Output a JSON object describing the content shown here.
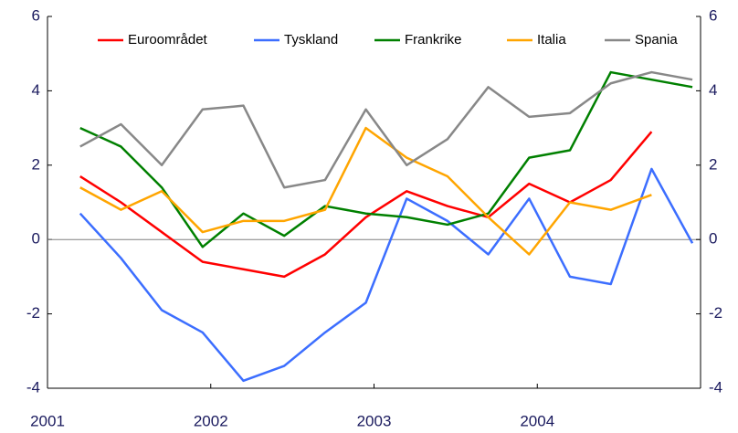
{
  "chart_data": {
    "type": "line",
    "x": [
      2001.2,
      2001.45,
      2001.7,
      2001.95,
      2002.2,
      2002.45,
      2002.7,
      2002.95,
      2003.2,
      2003.45,
      2003.7,
      2003.95,
      2004.2,
      2004.45,
      2004.7,
      2004.95
    ],
    "xlim": [
      2001,
      2005
    ],
    "xticks": [
      2001,
      2002,
      2003,
      2004
    ],
    "ylim": [
      -4,
      6
    ],
    "yticks": [
      -4,
      -2,
      0,
      2,
      4,
      6
    ],
    "y2lim": [
      -4,
      6
    ],
    "y2ticks": [
      -4,
      -2,
      0,
      2,
      4,
      6
    ],
    "series": [
      {
        "name": "Euroområdet",
        "color": "#ff0000",
        "values": [
          1.7,
          1.0,
          0.2,
          -0.6,
          -0.8,
          -1.0,
          -0.4,
          0.6,
          1.3,
          0.9,
          0.6,
          1.5,
          1.0,
          1.6,
          2.9,
          null
        ]
      },
      {
        "name": "Tyskland",
        "color": "#3c6eff",
        "values": [
          0.7,
          -0.5,
          -1.9,
          -2.5,
          -3.8,
          -3.4,
          -2.5,
          -1.7,
          1.1,
          0.5,
          -0.4,
          1.1,
          -1.0,
          -1.2,
          1.9,
          -0.1
        ]
      },
      {
        "name": "Frankrike",
        "color": "#008000",
        "values": [
          3.0,
          2.5,
          1.4,
          -0.2,
          0.7,
          0.1,
          0.9,
          0.7,
          0.6,
          0.4,
          0.7,
          2.2,
          2.4,
          4.5,
          4.3,
          4.1
        ]
      },
      {
        "name": "Italia",
        "color": "#ffa500",
        "values": [
          1.4,
          0.8,
          1.3,
          0.2,
          0.5,
          0.5,
          0.8,
          3.0,
          2.2,
          1.7,
          0.6,
          -0.4,
          1.0,
          0.8,
          1.2,
          null
        ]
      },
      {
        "name": "Spania",
        "color": "#888888",
        "values": [
          2.5,
          3.1,
          2.0,
          3.5,
          3.6,
          1.4,
          1.6,
          3.5,
          2.0,
          2.7,
          4.1,
          3.3,
          3.4,
          4.2,
          4.5,
          4.3
        ]
      }
    ]
  }
}
